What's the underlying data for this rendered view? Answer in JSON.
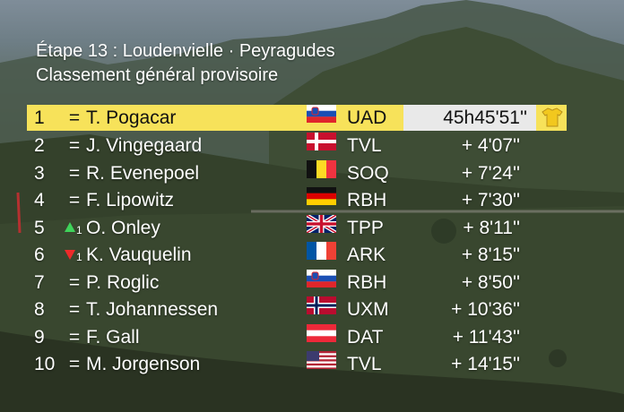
{
  "header": {
    "title": "Étape 13 : Loudenvielle · Peyragudes",
    "subtitle": "Classement général provisoire"
  },
  "standings": [
    {
      "rank": "1",
      "symbol": "=",
      "name": "T. Pogacar",
      "flag": "slovenia",
      "team": "UAD",
      "time": "45h45'51''",
      "leader": true
    },
    {
      "rank": "2",
      "symbol": "=",
      "name": "J. Vingegaard",
      "flag": "denmark",
      "team": "TVL",
      "time": "+ 4'07''"
    },
    {
      "rank": "3",
      "symbol": "=",
      "name": "R. Evenepoel",
      "flag": "belgium",
      "team": "SOQ",
      "time": "+ 7'24''"
    },
    {
      "rank": "4",
      "symbol": "=",
      "name": "F. Lipowitz",
      "flag": "germany",
      "team": "RBH",
      "time": "+ 7'30''"
    },
    {
      "rank": "5",
      "symbol": "",
      "movement": "up",
      "delta": "1",
      "name": "O. Onley",
      "flag": "uk",
      "team": "TPP",
      "time": "+ 8'11''"
    },
    {
      "rank": "6",
      "symbol": "",
      "movement": "down",
      "delta": "1",
      "name": "K. Vauquelin",
      "flag": "france",
      "team": "ARK",
      "time": "+ 8'15''"
    },
    {
      "rank": "7",
      "symbol": "=",
      "name": "P. Roglic",
      "flag": "slovenia",
      "team": "RBH",
      "time": "+ 8'50''"
    },
    {
      "rank": "8",
      "symbol": "=",
      "name": "T. Johannessen",
      "flag": "norway",
      "team": "UXM",
      "time": "+ 10'36''"
    },
    {
      "rank": "9",
      "symbol": "=",
      "name": "F. Gall",
      "flag": "austria",
      "team": "DAT",
      "time": "+ 11'43''"
    },
    {
      "rank": "10",
      "symbol": "=",
      "name": "M. Jorgenson",
      "flag": "usa",
      "team": "TVL",
      "time": "+ 14'15''"
    }
  ],
  "icons": {
    "leader_badge": "yellow-jersey-icon",
    "move_up": "green-up-arrow-icon",
    "move_down": "red-down-arrow-icon"
  },
  "colors": {
    "leader_row": "#f7e25a",
    "leader_time_box": "#e9e9e9",
    "move_up": "#3fd35a",
    "move_down": "#ee2a2a"
  }
}
